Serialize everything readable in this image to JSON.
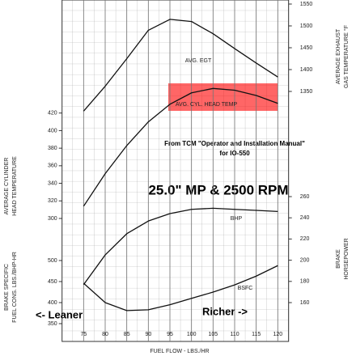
{
  "chart_data": {
    "type": "line",
    "annotations": [
      "From TCM \"Operator and Installation Manual\"",
      "for IO-550"
    ],
    "condition": "25.0\" MP & 2500 RPM",
    "left_note": "<- Leaner",
    "right_note": "Richer ->",
    "xlabel": "FUEL FLOW - LBS./HR",
    "xlim": [
      70,
      122.5
    ],
    "xticks": [
      75,
      80,
      85,
      90,
      95,
      100,
      105,
      110,
      115,
      120
    ],
    "grid": true,
    "axes": {
      "egt": {
        "side": "right",
        "title": [
          "AVERAGE EXHAUST",
          "GAS TEMPERATURE °F"
        ],
        "ylim": [
          1300,
          1550
        ],
        "yticks": [
          1350,
          1400,
          1450,
          1500,
          1550
        ]
      },
      "cht": {
        "side": "left",
        "title": [
          "AVERAGE CYLINDER",
          "HEAD TEMPERATURE"
        ],
        "ylim": [
          300,
          440
        ],
        "yticks": [
          300,
          320,
          340,
          360,
          380,
          400,
          420
        ]
      },
      "bhp": {
        "side": "right",
        "title": [
          "BRAKE",
          "HORSEPOWER"
        ],
        "ylim": [
          160,
          260
        ],
        "yticks": [
          160,
          180,
          200,
          220,
          240,
          260
        ]
      },
      "bsfc": {
        "side": "left",
        "title": [
          "BRAKE SPECIFIC",
          "FUEL CONS. LBS./BHP-HR"
        ],
        "ylim": [
          350,
          500
        ],
        "yticks": [
          350,
          400,
          450,
          500
        ]
      }
    },
    "series": [
      {
        "label": "AVG. EGT",
        "axis": "egt",
        "color": "#111111",
        "x": [
          75,
          80,
          85,
          90,
          95,
          100,
          105,
          110,
          115,
          120
        ],
        "values": [
          1305,
          1362,
          1425,
          1490,
          1515,
          1510,
          1482,
          1448,
          1415,
          1383
        ]
      },
      {
        "label": "AVG. CYL. HEAD TEMP",
        "axis": "cht",
        "color": "#111111",
        "x": [
          75,
          80,
          85,
          90,
          95,
          100,
          105,
          110,
          115,
          120
        ],
        "values": [
          314,
          351,
          383,
          410,
          430,
          443,
          448,
          446,
          440,
          431
        ]
      },
      {
        "label": "BHP",
        "axis": "bhp",
        "color": "#111111",
        "x": [
          75,
          80,
          85,
          90,
          95,
          100,
          105,
          110,
          115,
          120
        ],
        "values": [
          177,
          205,
          225,
          237,
          244,
          248,
          249,
          248,
          247,
          246
        ]
      },
      {
        "label": "BSFC",
        "axis": "bsfc",
        "color": "#111111",
        "x": [
          75,
          80,
          85,
          90,
          95,
          100,
          105,
          110,
          115,
          120
        ],
        "values": [
          446,
          400,
          381,
          383,
          395,
          410,
          425,
          442,
          463,
          488
        ]
      }
    ]
  }
}
